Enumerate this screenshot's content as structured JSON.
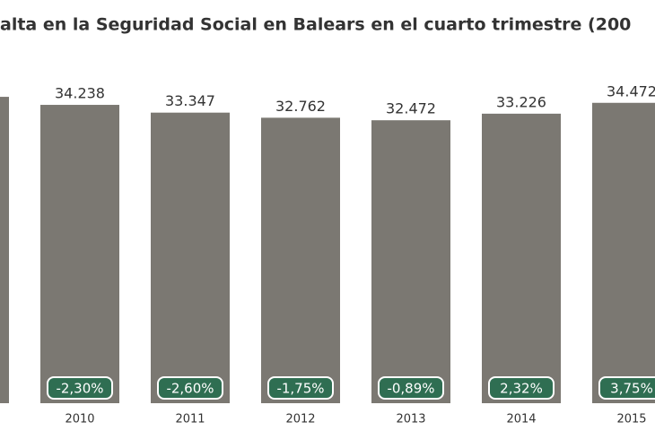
{
  "chart_data": {
    "type": "bar",
    "title": "alta en la Seguridad Social en Balears en el cuarto trimestre (200",
    "categories": [
      null,
      "2010",
      "2011",
      "2012",
      "2013",
      "2014",
      "2015"
    ],
    "values": [
      35160,
      34238,
      33347,
      32762,
      32472,
      33226,
      34472
    ],
    "value_labels": [
      null,
      "34.238",
      "33.347",
      "32.762",
      "32.472",
      "33.226",
      "34.472"
    ],
    "changes": [
      null,
      -2.3,
      -2.6,
      -1.75,
      -0.89,
      2.32,
      3.75
    ],
    "change_labels": [
      null,
      "-2,30%",
      "-2,60%",
      "-1,75%",
      "-0,89%",
      "2,32%",
      "3,75%"
    ],
    "color": "#7b7872",
    "change_color": "#2f6e52",
    "ylim": [
      0,
      40000
    ]
  }
}
